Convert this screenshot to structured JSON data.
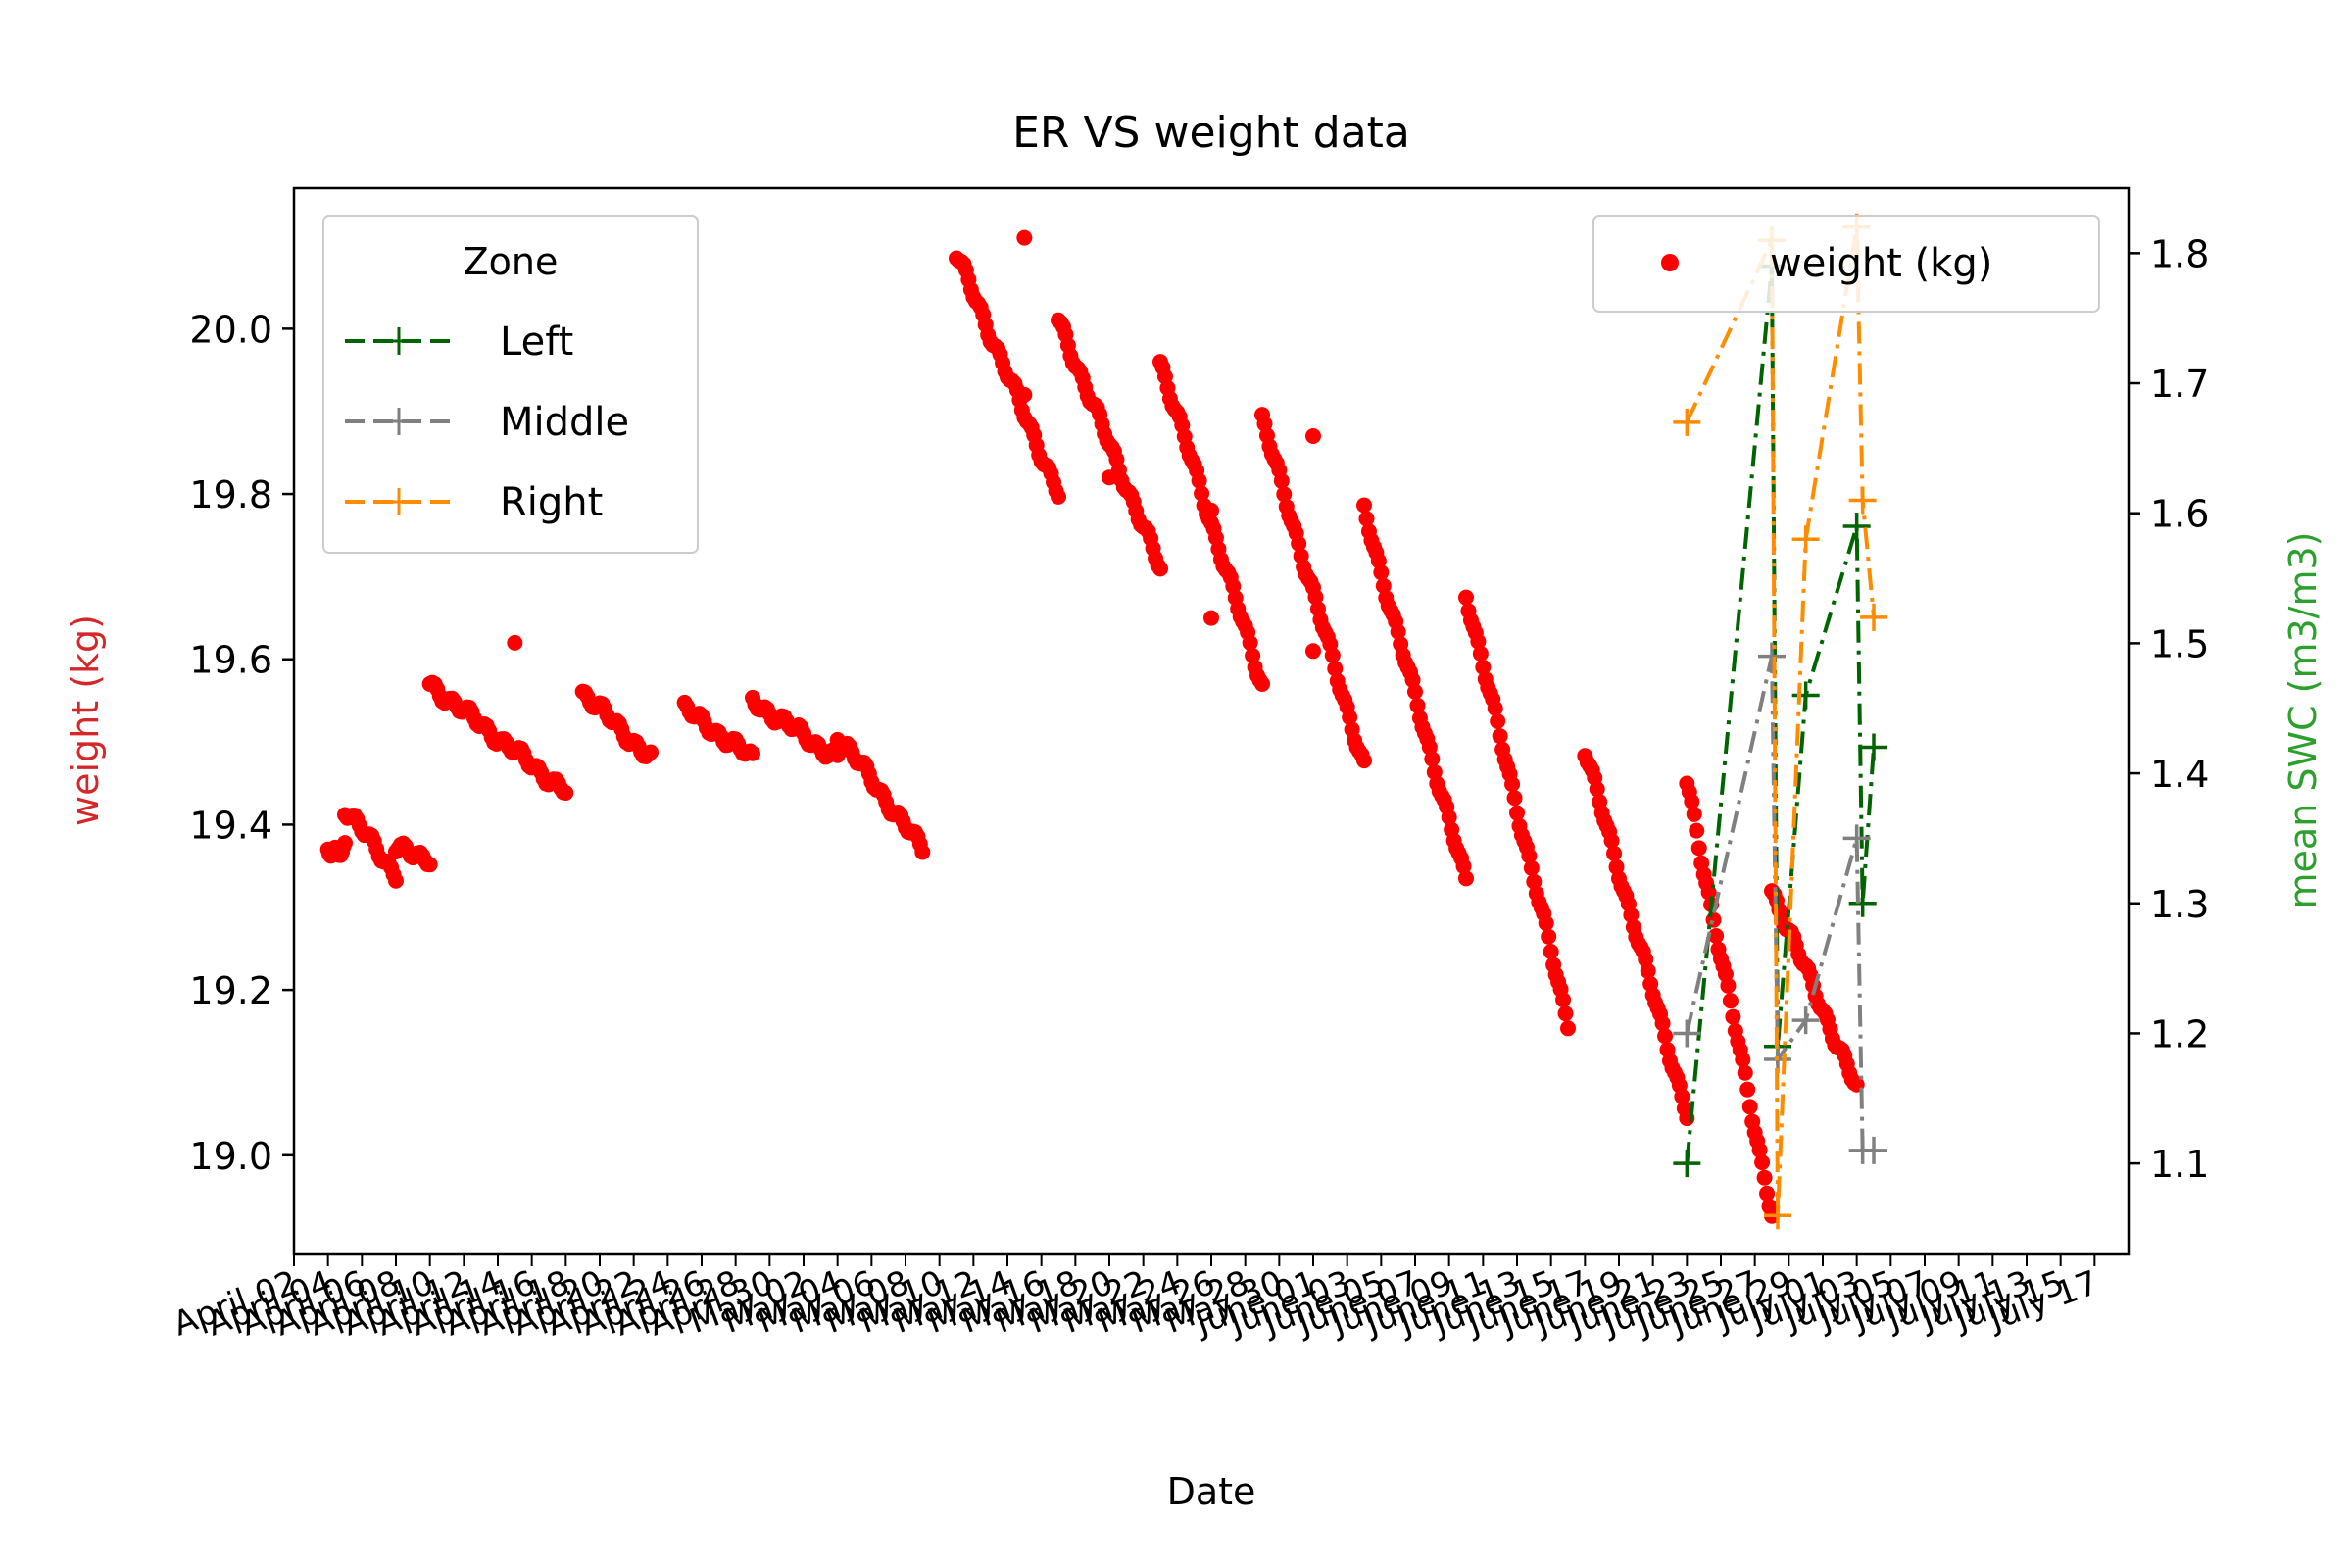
{
  "chart_data": {
    "type": "line",
    "title": "ER VS weight data",
    "xlabel": "Date",
    "ylabel_left": "weight (kg)",
    "ylabel_right": "mean SWC (m3/m3)",
    "colors": {
      "weight": "#ff0000",
      "left_axis_label": "#d62728",
      "right_axis_label": "#2ca02c",
      "Left": "#006400",
      "Middle": "#808080",
      "Right": "#ff8c00"
    },
    "ylim_left": [
      18.88,
      20.17
    ],
    "ylim_right": [
      1.03,
      1.85
    ],
    "xlim_days": [
      "2021-04-02",
      "2021-07-19"
    ],
    "yticks_left": [
      "19.0",
      "19.2",
      "19.4",
      "19.6",
      "19.8",
      "20.0"
    ],
    "yticks_right": [
      "1.1",
      "1.2",
      "1.3",
      "1.4",
      "1.5",
      "1.6",
      "1.7",
      "1.8"
    ],
    "xtick_labels": [
      "April 02",
      "April 04",
      "April 06",
      "April 08",
      "April 10",
      "April 12",
      "April 14",
      "April 16",
      "April 18",
      "April 20",
      "April 22",
      "April 24",
      "April 26",
      "April 28",
      "April 30",
      "May 02",
      "May 04",
      "May 06",
      "May 08",
      "May 10",
      "May 12",
      "May 14",
      "May 16",
      "May 18",
      "May 20",
      "May 22",
      "May 24",
      "May 26",
      "May 28",
      "May 30",
      "June 01",
      "June 03",
      "June 05",
      "June 07",
      "June 09",
      "June 11",
      "June 13",
      "June 15",
      "June 17",
      "June 19",
      "June 21",
      "June 23",
      "June 25",
      "June 27",
      "June 29",
      "July 01",
      "July 03",
      "July 05",
      "July 07",
      "July 09",
      "July 11",
      "July 13",
      "July 15",
      "July 17"
    ],
    "legend_weight": {
      "placement": "upper right",
      "label": "weight (kg)"
    },
    "legend_zone": {
      "placement": "upper left",
      "title": "Zone",
      "entries": [
        "Left",
        "Middle",
        "Right"
      ]
    },
    "weight_segments": [
      {
        "x": [
          "2021-04-04",
          "2021-04-05"
        ],
        "y": [
          19.37,
          19.37
        ]
      },
      {
        "x": [
          "2021-04-05",
          "2021-04-08"
        ],
        "y": [
          19.42,
          19.34
        ]
      },
      {
        "x": [
          "2021-04-08",
          "2021-04-10"
        ],
        "y": [
          19.37,
          19.36
        ]
      },
      {
        "x": [
          "2021-04-10",
          "2021-04-18"
        ],
        "y": [
          19.57,
          19.44
        ]
      },
      {
        "x": [
          "2021-04-19",
          "2021-04-23"
        ],
        "y": [
          19.56,
          19.48
        ]
      },
      {
        "x": [
          "2021-04-25",
          "2021-04-29"
        ],
        "y": [
          19.54,
          19.48
        ]
      },
      {
        "x": [
          "2021-04-29",
          "2021-05-04"
        ],
        "y": [
          19.55,
          19.48
        ]
      },
      {
        "x": [
          "2021-05-04",
          "2021-05-09"
        ],
        "y": [
          19.51,
          19.37
        ]
      },
      {
        "x": [
          "2021-05-11",
          "2021-05-17"
        ],
        "y": [
          20.09,
          19.8
        ]
      },
      {
        "x": [
          "2021-05-17",
          "2021-05-23"
        ],
        "y": [
          20.01,
          19.71
        ]
      },
      {
        "x": [
          "2021-05-23",
          "2021-05-29"
        ],
        "y": [
          19.96,
          19.57
        ]
      },
      {
        "x": [
          "2021-05-29",
          "2021-06-04"
        ],
        "y": [
          19.89,
          19.47
        ]
      },
      {
        "x": [
          "2021-06-04",
          "2021-06-10"
        ],
        "y": [
          19.78,
          19.33
        ]
      },
      {
        "x": [
          "2021-06-10",
          "2021-06-16"
        ],
        "y": [
          19.68,
          19.16
        ]
      },
      {
        "x": [
          "2021-06-17",
          "2021-06-23"
        ],
        "y": [
          19.49,
          19.05
        ]
      },
      {
        "x": [
          "2021-06-23",
          "2021-06-28"
        ],
        "y": [
          19.45,
          18.93
        ]
      },
      {
        "x": [
          "2021-06-28",
          "2021-07-03"
        ],
        "y": [
          19.32,
          19.08
        ]
      }
    ],
    "weight_outliers": [
      {
        "x": "2021-04-15",
        "y": 19.62
      },
      {
        "x": "2021-05-15",
        "y": 20.11
      },
      {
        "x": "2021-05-15",
        "y": 19.92
      },
      {
        "x": "2021-05-20",
        "y": 19.82
      },
      {
        "x": "2021-05-26",
        "y": 19.78
      },
      {
        "x": "2021-05-26",
        "y": 19.65
      },
      {
        "x": "2021-06-01",
        "y": 19.87
      },
      {
        "x": "2021-06-01",
        "y": 19.61
      }
    ],
    "series": [
      {
        "name": "Left",
        "x": [
          "2021-06-23",
          "2021-06-28",
          "2021-06-28",
          "2021-06-30",
          "2021-07-03",
          "2021-07-03",
          "2021-07-04"
        ],
        "values": [
          1.1,
          1.79,
          1.19,
          1.46,
          1.59,
          1.3,
          1.42
        ]
      },
      {
        "name": "Middle",
        "x": [
          "2021-06-23",
          "2021-06-28",
          "2021-06-28",
          "2021-06-30",
          "2021-07-03",
          "2021-07-03",
          "2021-07-04"
        ],
        "values": [
          1.2,
          1.49,
          1.18,
          1.21,
          1.35,
          1.11,
          1.11
        ]
      },
      {
        "name": "Right",
        "x": [
          "2021-06-23",
          "2021-06-28",
          "2021-06-28",
          "2021-06-30",
          "2021-07-03",
          "2021-07-03",
          "2021-07-04"
        ],
        "values": [
          1.67,
          1.81,
          1.06,
          1.58,
          1.82,
          1.61,
          1.52
        ]
      }
    ]
  }
}
